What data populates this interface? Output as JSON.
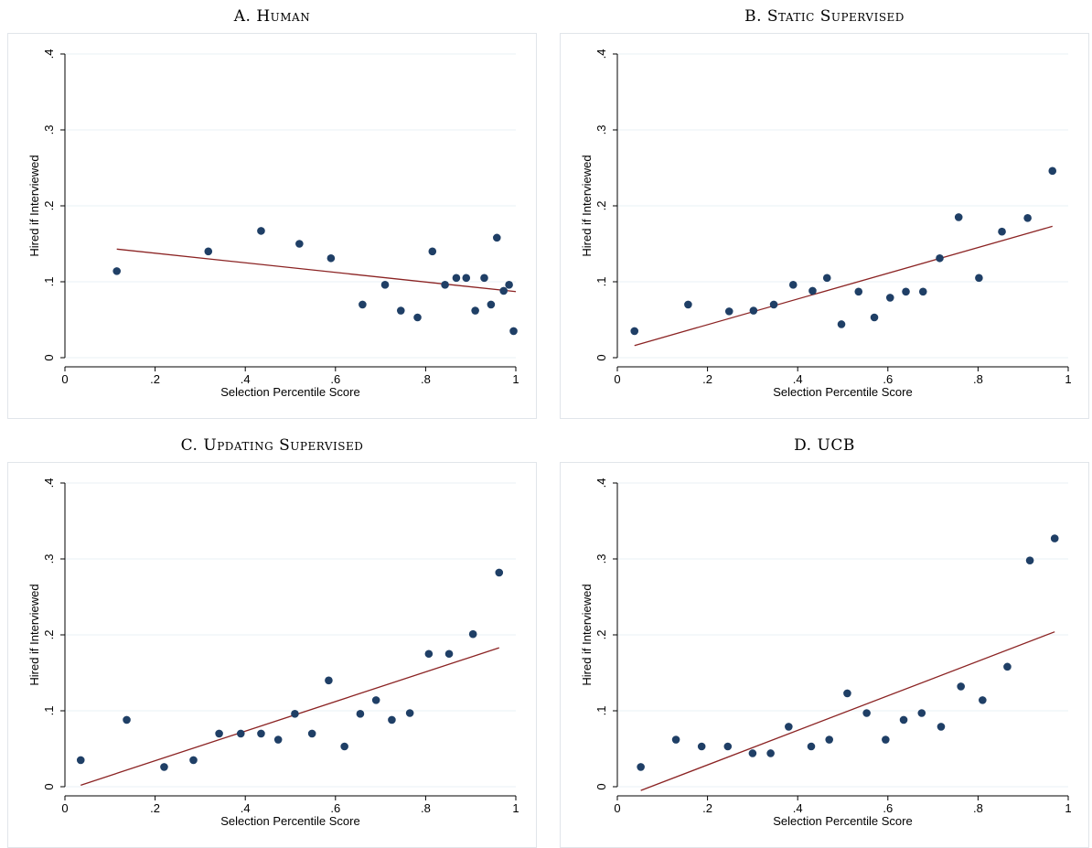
{
  "chart_data": [
    {
      "type": "scatter",
      "title": "A. Human",
      "xlabel": "Selection Percentile Score",
      "ylabel": "Hired if Interviewed",
      "xlim": [
        0,
        1
      ],
      "ylim": [
        0,
        0.4
      ],
      "xticks": [
        "0",
        ".2",
        ".4",
        ".6",
        ".8",
        "1"
      ],
      "yticks": [
        "0",
        ".1",
        ".2",
        ".3",
        ".4"
      ],
      "grid": true,
      "points": [
        [
          0.115,
          0.114
        ],
        [
          0.318,
          0.14
        ],
        [
          0.435,
          0.167
        ],
        [
          0.52,
          0.15
        ],
        [
          0.59,
          0.131
        ],
        [
          0.66,
          0.07
        ],
        [
          0.71,
          0.096
        ],
        [
          0.745,
          0.062
        ],
        [
          0.782,
          0.053
        ],
        [
          0.815,
          0.14
        ],
        [
          0.843,
          0.096
        ],
        [
          0.868,
          0.105
        ],
        [
          0.89,
          0.105
        ],
        [
          0.91,
          0.062
        ],
        [
          0.93,
          0.105
        ],
        [
          0.945,
          0.07
        ],
        [
          0.958,
          0.158
        ],
        [
          0.973,
          0.088
        ],
        [
          0.985,
          0.096
        ],
        [
          0.995,
          0.035
        ]
      ],
      "fit_line": [
        [
          0.115,
          0.143
        ],
        [
          1.0,
          0.087
        ]
      ]
    },
    {
      "type": "scatter",
      "title": "B. Static Supervised",
      "xlabel": "Selection Percentile Score",
      "ylabel": "Hired if Interviewed",
      "xlim": [
        0,
        1
      ],
      "ylim": [
        0,
        0.4
      ],
      "xticks": [
        "0",
        ".2",
        ".4",
        ".6",
        ".8",
        "1"
      ],
      "yticks": [
        "0",
        ".1",
        ".2",
        ".3",
        ".4"
      ],
      "grid": true,
      "points": [
        [
          0.038,
          0.035
        ],
        [
          0.157,
          0.07
        ],
        [
          0.248,
          0.061
        ],
        [
          0.302,
          0.062
        ],
        [
          0.347,
          0.07
        ],
        [
          0.39,
          0.096
        ],
        [
          0.433,
          0.088
        ],
        [
          0.465,
          0.105
        ],
        [
          0.497,
          0.044
        ],
        [
          0.535,
          0.087
        ],
        [
          0.57,
          0.053
        ],
        [
          0.605,
          0.079
        ],
        [
          0.64,
          0.087
        ],
        [
          0.678,
          0.087
        ],
        [
          0.715,
          0.131
        ],
        [
          0.757,
          0.185
        ],
        [
          0.802,
          0.105
        ],
        [
          0.853,
          0.166
        ],
        [
          0.91,
          0.184
        ],
        [
          0.965,
          0.246
        ]
      ],
      "fit_line": [
        [
          0.038,
          0.016
        ],
        [
          0.965,
          0.173
        ]
      ]
    },
    {
      "type": "scatter",
      "title": "C. Updating Supervised",
      "xlabel": "Selection Percentile Score",
      "ylabel": "Hired if Interviewed",
      "xlim": [
        0,
        1
      ],
      "ylim": [
        0,
        0.4
      ],
      "xticks": [
        "0",
        ".2",
        ".4",
        ".6",
        ".8",
        "1"
      ],
      "yticks": [
        "0",
        ".1",
        ".2",
        ".3",
        ".4"
      ],
      "grid": true,
      "points": [
        [
          0.035,
          0.035
        ],
        [
          0.137,
          0.088
        ],
        [
          0.22,
          0.026
        ],
        [
          0.285,
          0.035
        ],
        [
          0.342,
          0.07
        ],
        [
          0.39,
          0.07
        ],
        [
          0.435,
          0.07
        ],
        [
          0.473,
          0.062
        ],
        [
          0.51,
          0.096
        ],
        [
          0.548,
          0.07
        ],
        [
          0.585,
          0.14
        ],
        [
          0.62,
          0.053
        ],
        [
          0.655,
          0.096
        ],
        [
          0.69,
          0.114
        ],
        [
          0.725,
          0.088
        ],
        [
          0.765,
          0.097
        ],
        [
          0.807,
          0.175
        ],
        [
          0.852,
          0.175
        ],
        [
          0.905,
          0.201
        ],
        [
          0.963,
          0.282
        ]
      ],
      "fit_line": [
        [
          0.035,
          0.002
        ],
        [
          0.963,
          0.183
        ]
      ]
    },
    {
      "type": "scatter",
      "title": "D. UCB",
      "xlabel": "Selection Percentile Score",
      "ylabel": "Hired if Interviewed",
      "xlim": [
        0,
        1
      ],
      "ylim": [
        0,
        0.4
      ],
      "xticks": [
        "0",
        ".2",
        ".4",
        ".6",
        ".8",
        "1"
      ],
      "yticks": [
        "0",
        ".1",
        ".2",
        ".3",
        ".4"
      ],
      "grid": true,
      "points": [
        [
          0.052,
          0.026
        ],
        [
          0.13,
          0.062
        ],
        [
          0.187,
          0.053
        ],
        [
          0.245,
          0.053
        ],
        [
          0.3,
          0.044
        ],
        [
          0.34,
          0.044
        ],
        [
          0.38,
          0.079
        ],
        [
          0.43,
          0.053
        ],
        [
          0.47,
          0.062
        ],
        [
          0.51,
          0.123
        ],
        [
          0.553,
          0.097
        ],
        [
          0.595,
          0.062
        ],
        [
          0.635,
          0.088
        ],
        [
          0.675,
          0.097
        ],
        [
          0.718,
          0.079
        ],
        [
          0.762,
          0.132
        ],
        [
          0.81,
          0.114
        ],
        [
          0.865,
          0.158
        ],
        [
          0.915,
          0.298
        ],
        [
          0.97,
          0.327
        ]
      ],
      "fit_line": [
        [
          0.052,
          -0.005
        ],
        [
          0.97,
          0.204
        ]
      ]
    }
  ]
}
